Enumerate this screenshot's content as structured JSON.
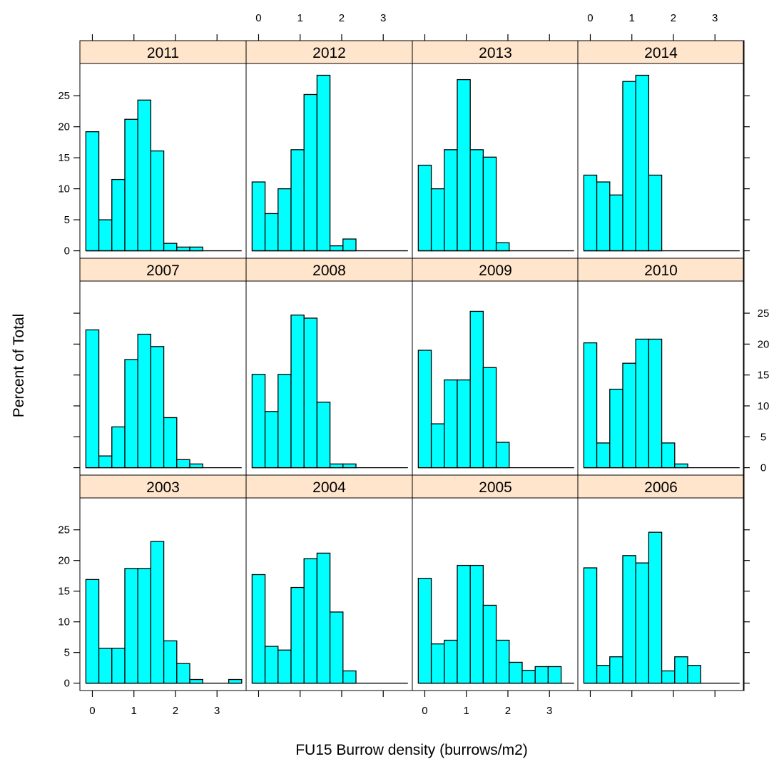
{
  "chart_data": {
    "type": "bar",
    "layout": "lattice 4x3 histogram panels",
    "xlabel": "FU15 Burrow density (burrows/m2)",
    "ylabel": "Percent of Total",
    "xlim": [
      -0.3,
      3.7
    ],
    "ylim": [
      -1.2,
      30.2
    ],
    "x_ticks": [
      "0",
      "1",
      "2",
      "3"
    ],
    "y_ticks": [
      "0",
      "5",
      "10",
      "15",
      "20",
      "25"
    ],
    "bin_width": 0.3125,
    "bin_start": -0.15625,
    "colors": {
      "bar_fill": "#00ffff",
      "bar_stroke": "#000000",
      "strip_fill": "#ffe5cc"
    },
    "panels": [
      {
        "label": "2011",
        "row": 0,
        "col": 0,
        "values": [
          19.2,
          5.0,
          11.5,
          21.2,
          24.3,
          16.1,
          1.2,
          0.6,
          0.6,
          0,
          0,
          0
        ]
      },
      {
        "label": "2012",
        "row": 0,
        "col": 1,
        "values": [
          11.1,
          6.0,
          10.0,
          16.3,
          25.2,
          28.3,
          0.8,
          1.9,
          0,
          0,
          0,
          0
        ]
      },
      {
        "label": "2013",
        "row": 0,
        "col": 2,
        "values": [
          13.8,
          10.0,
          16.3,
          27.6,
          16.3,
          15.1,
          1.3,
          0,
          0,
          0,
          0,
          0
        ]
      },
      {
        "label": "2014",
        "row": 0,
        "col": 3,
        "values": [
          12.2,
          11.1,
          9.0,
          27.3,
          28.3,
          12.2,
          0,
          0,
          0,
          0,
          0,
          0
        ]
      },
      {
        "label": "2007",
        "row": 1,
        "col": 0,
        "values": [
          22.3,
          1.9,
          6.6,
          17.5,
          21.6,
          19.6,
          8.1,
          1.3,
          0.6,
          0,
          0,
          0
        ]
      },
      {
        "label": "2008",
        "row": 1,
        "col": 1,
        "values": [
          15.1,
          9.1,
          15.1,
          24.7,
          24.2,
          10.6,
          0.6,
          0.6,
          0,
          0,
          0,
          0
        ]
      },
      {
        "label": "2009",
        "row": 1,
        "col": 2,
        "values": [
          19.0,
          7.1,
          14.2,
          14.2,
          25.3,
          16.2,
          4.1,
          0,
          0,
          0,
          0,
          0
        ]
      },
      {
        "label": "2010",
        "row": 1,
        "col": 3,
        "values": [
          20.2,
          4.0,
          12.7,
          16.9,
          20.8,
          20.8,
          4.0,
          0.6,
          0,
          0,
          0,
          0
        ]
      },
      {
        "label": "2003",
        "row": 2,
        "col": 0,
        "values": [
          16.9,
          5.7,
          5.7,
          18.7,
          18.7,
          23.1,
          6.9,
          3.2,
          0.6,
          0,
          0,
          0.6
        ]
      },
      {
        "label": "2004",
        "row": 2,
        "col": 1,
        "values": [
          17.7,
          6.0,
          5.4,
          15.6,
          20.3,
          21.2,
          11.6,
          2.0,
          0,
          0,
          0,
          0
        ]
      },
      {
        "label": "2005",
        "row": 2,
        "col": 2,
        "values": [
          17.1,
          6.4,
          7.0,
          19.2,
          19.2,
          12.7,
          7.0,
          3.4,
          2.1,
          2.7,
          2.7,
          0
        ]
      },
      {
        "label": "2006",
        "row": 2,
        "col": 3,
        "values": [
          18.8,
          2.9,
          4.3,
          20.8,
          19.6,
          24.6,
          2.0,
          4.3,
          2.9,
          0,
          0,
          0
        ]
      }
    ]
  }
}
